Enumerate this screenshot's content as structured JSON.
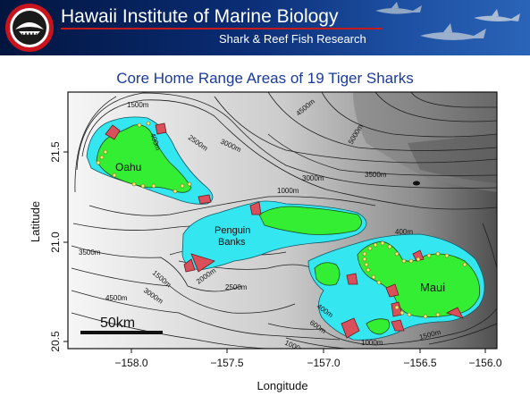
{
  "header": {
    "title": "Hawaii Institute of Marine Biology",
    "subtitle": "Shark & Reef Fish Research",
    "logo_icon": "shark-logo-icon",
    "decoration_icon": "swimming-sharks-icon"
  },
  "map": {
    "title": "Core Home Range Areas of 19 Tiger Sharks",
    "xlabel": "Longitude",
    "ylabel": "Latitude",
    "x_ticks": [
      "−158.0",
      "−157.5",
      "−157.0",
      "−156.5",
      "−156.0"
    ],
    "y_ticks": [
      "20.5",
      "21.0",
      "21.5"
    ],
    "scale_bar": "50km",
    "islands": {
      "oahu": "Oahu",
      "penguin": [
        "Penguin",
        "Banks"
      ],
      "maui": "Maui"
    },
    "contours": {
      "c1500a": "1500m",
      "c2500a": "2500m",
      "c3000a": "3000m",
      "c4500a": "4500m",
      "c5000": "5000m",
      "c400a": "400m",
      "c3000b": "3000m",
      "c3500a": "3500m",
      "c1000a": "1000m",
      "c400b": "400m",
      "c3500b": "3500m",
      "c1500b": "1500m",
      "c4500b": "4500m",
      "c3000c": "3000m",
      "c2000": "2000m",
      "c2500b": "2500m",
      "c400c": "400m",
      "c600": "600m",
      "c1000b": "1000m",
      "c1000c": "1000m",
      "c1500c": "1500m"
    },
    "colors": {
      "land": "#33ee33",
      "shelf": "#33e6f0",
      "core_range": "#d9505a",
      "receiver": "#f4ec6a",
      "title": "#1a3a9c"
    }
  }
}
